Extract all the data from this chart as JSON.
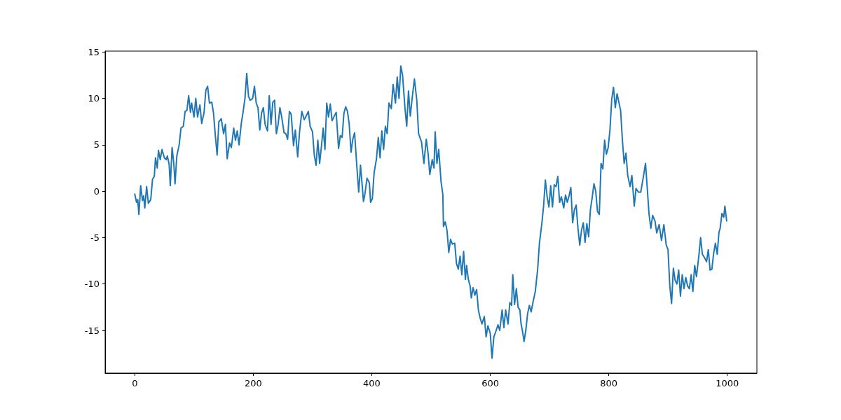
{
  "chart_data": {
    "type": "line",
    "x": [
      0,
      3,
      5,
      7,
      10,
      13,
      15,
      17,
      20,
      23,
      27,
      30,
      33,
      35,
      38,
      40,
      43,
      46,
      50,
      53,
      55,
      58,
      60,
      63,
      66,
      68,
      71,
      75,
      78,
      82,
      85,
      88,
      91,
      94,
      96,
      100,
      103,
      106,
      110,
      113,
      117,
      120,
      123,
      126,
      130,
      133,
      136,
      139,
      142,
      146,
      150,
      153,
      156,
      160,
      163,
      167,
      170,
      173,
      176,
      180,
      183,
      186,
      189,
      192,
      195,
      199,
      202,
      205,
      208,
      211,
      214,
      217,
      220,
      224,
      227,
      230,
      233,
      236,
      239,
      242,
      245,
      248,
      252,
      255,
      258,
      261,
      264,
      268,
      271,
      275,
      278,
      282,
      286,
      290,
      293,
      296,
      300,
      303,
      306,
      309,
      312,
      315,
      318,
      321,
      324,
      327,
      330,
      333,
      336,
      340,
      344,
      347,
      350,
      353,
      356,
      359,
      362,
      365,
      368,
      371,
      375,
      378,
      381,
      384,
      386,
      388,
      392,
      396,
      398,
      401,
      404,
      408,
      411,
      414,
      417,
      420,
      423,
      426,
      429,
      433,
      436,
      440,
      443,
      446,
      449,
      452,
      456,
      459,
      462,
      465,
      468,
      472,
      476,
      479,
      484,
      488,
      492,
      495,
      498,
      502,
      505,
      507,
      510,
      513,
      517,
      520,
      521,
      524,
      527,
      530,
      533,
      536,
      540,
      543,
      546,
      549,
      552,
      555,
      558,
      560,
      563,
      566,
      568,
      571,
      574,
      577,
      580,
      583,
      586,
      590,
      593,
      596,
      600,
      603,
      606,
      610,
      613,
      616,
      620,
      623,
      626,
      630,
      633,
      636,
      638,
      641,
      644,
      647,
      650,
      652,
      655,
      657,
      660,
      663,
      666,
      669,
      672,
      676,
      680,
      683,
      687,
      690,
      693,
      696,
      699,
      702,
      705,
      708,
      711,
      714,
      717,
      720,
      724,
      727,
      730,
      733,
      736,
      739,
      742,
      745,
      748,
      751,
      754,
      757,
      760,
      763,
      766,
      769,
      772,
      775,
      778,
      781,
      784,
      787,
      790,
      793,
      796,
      799,
      802,
      805,
      808,
      811,
      814,
      817,
      820,
      823,
      826,
      829,
      832,
      836,
      839,
      843,
      846,
      850,
      854,
      858,
      862,
      864,
      868,
      871,
      874,
      878,
      881,
      885,
      889,
      893,
      897,
      900,
      903,
      906,
      909,
      912,
      915,
      918,
      921,
      924,
      927,
      930,
      933,
      936,
      939,
      942,
      945,
      948,
      952,
      955,
      958,
      962,
      965,
      968,
      971,
      974,
      977,
      980,
      983,
      986,
      988,
      991,
      994,
      996,
      999
    ],
    "values": [
      -0.3,
      -1.2,
      -0.9,
      -2.5,
      0.6,
      -1.0,
      -0.5,
      -1.8,
      0.5,
      -1.3,
      -0.9,
      1.3,
      1.6,
      3.6,
      2.5,
      4.4,
      3.4,
      4.5,
      3.6,
      3.4,
      3.8,
      2.9,
      0.6,
      4.7,
      2.9,
      0.8,
      3.8,
      5.0,
      6.8,
      7.0,
      8.6,
      8.7,
      10.3,
      8.5,
      9.5,
      8.0,
      10.0,
      8.0,
      9.3,
      7.3,
      8.5,
      10.9,
      11.3,
      9.5,
      9.6,
      8.4,
      6.0,
      3.9,
      7.5,
      7.8,
      6.2,
      7.2,
      3.5,
      5.2,
      4.7,
      6.8,
      5.5,
      6.5,
      5.0,
      7.4,
      8.6,
      10.0,
      12.7,
      10.2,
      9.8,
      10.0,
      11.3,
      9.5,
      9.0,
      6.6,
      8.4,
      9.0,
      7.2,
      6.5,
      10.3,
      7.2,
      9.6,
      9.8,
      6.2,
      7.2,
      9.0,
      8.0,
      6.3,
      6.2,
      5.6,
      8.6,
      8.3,
      4.9,
      6.6,
      3.7,
      6.3,
      8.6,
      7.7,
      8.2,
      8.6,
      7.0,
      6.4,
      3.9,
      2.8,
      5.5,
      3.0,
      4.8,
      6.8,
      4.5,
      9.5,
      8.0,
      9.4,
      7.6,
      8.0,
      8.5,
      4.6,
      6.0,
      5.8,
      8.4,
      9.1,
      8.6,
      7.2,
      4.2,
      5.6,
      6.3,
      2.5,
      -0.1,
      2.8,
      0.5,
      -1.1,
      -0.5,
      1.4,
      0.9,
      -1.2,
      -0.8,
      2.0,
      3.5,
      5.8,
      3.6,
      6.5,
      4.5,
      7.0,
      6.2,
      9.5,
      8.9,
      11.5,
      9.5,
      12.3,
      10.0,
      13.5,
      12.5,
      9.0,
      7.0,
      10.8,
      8.1,
      9.9,
      12.1,
      9.8,
      6.2,
      5.3,
      3.0,
      5.6,
      4.1,
      1.8,
      3.4,
      2.5,
      6.4,
      3.0,
      4.5,
      1.0,
      -0.4,
      -3.8,
      -3.3,
      -4.2,
      -6.6,
      -5.2,
      -5.7,
      -5.6,
      -7.8,
      -8.4,
      -7.0,
      -9.0,
      -6.5,
      -9.5,
      -8.0,
      -9.5,
      -10.2,
      -11.5,
      -10.4,
      -11.2,
      -10.6,
      -12.8,
      -13.7,
      -14.3,
      -13.5,
      -15.7,
      -14.5,
      -15.3,
      -18.0,
      -15.7,
      -15.0,
      -14.4,
      -15.0,
      -12.8,
      -14.7,
      -12.8,
      -14.3,
      -12.0,
      -12.3,
      -9.0,
      -12.2,
      -10.5,
      -12.5,
      -12.8,
      -14.3,
      -15.3,
      -16.2,
      -15.0,
      -13.2,
      -12.3,
      -13.0,
      -12.0,
      -10.8,
      -8.4,
      -5.6,
      -3.5,
      -1.6,
      1.2,
      -0.6,
      -1.7,
      0.6,
      -1.7,
      0.7,
      0.5,
      1.6,
      -1.2,
      -0.6,
      -1.8,
      -0.4,
      -1.2,
      -0.5,
      0.4,
      -3.4,
      -2.0,
      -1.5,
      -4.0,
      -5.8,
      -4.2,
      -3.4,
      -5.5,
      -3.5,
      -4.9,
      -2.0,
      -0.7,
      0.8,
      0.0,
      -2.2,
      -2.5,
      3.0,
      2.4,
      5.5,
      4.0,
      4.7,
      6.6,
      9.9,
      11.2,
      9.0,
      10.5,
      9.6,
      8.7,
      5.5,
      3.0,
      4.1,
      1.7,
      0.5,
      1.7,
      -1.6,
      0.3,
      -0.1,
      -0.1,
      1.4,
      3.0,
      1.2,
      -2.5,
      -4.0,
      -2.6,
      -3.2,
      -4.5,
      -3.6,
      -5.3,
      -3.6,
      -5.8,
      -6.3,
      -10.2,
      -12.1,
      -8.3,
      -9.6,
      -10.0,
      -8.5,
      -11.3,
      -9.0,
      -10.5,
      -9.3,
      -10.2,
      -10.5,
      -9.0,
      -10.8,
      -8.0,
      -9.2,
      -7.0,
      -5.0,
      -6.8,
      -7.2,
      -7.6,
      -6.3,
      -8.5,
      -8.4,
      -6.7,
      -5.6,
      -6.8,
      -4.4,
      -4.0,
      -2.4,
      -2.8,
      -1.6,
      -3.2
    ],
    "color": "#1f77b4",
    "xlim": [
      -50,
      1050
    ],
    "xticks": [
      0,
      200,
      400,
      600,
      800,
      1000
    ],
    "ylim": [
      -19.6,
      15.1
    ],
    "yticks": [
      -15,
      -10,
      -5,
      0,
      5,
      10,
      15
    ],
    "grid": false,
    "marker": "none",
    "line_style": "solid"
  }
}
